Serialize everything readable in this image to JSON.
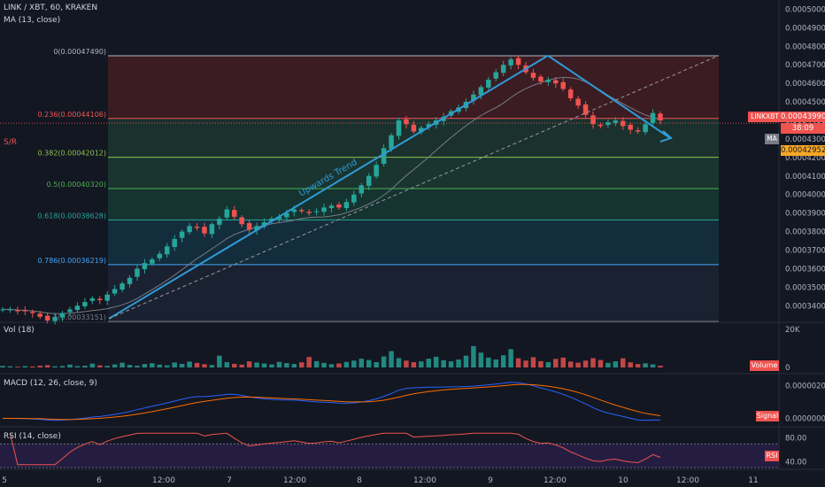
{
  "header": {
    "symbol_line": "LINK / XBT, 60, KRAKEN",
    "ma_line": "MA (13, close)",
    "sr_label": "S/R"
  },
  "panes": {
    "vol": {
      "title": "Vol (18)",
      "tag": "Volume",
      "axis": [
        "20K",
        "0"
      ]
    },
    "macd": {
      "title": "MACD (12, 26, close, 9)",
      "tag": "Signal",
      "axis": [
        "0.00000200",
        "0.00000000"
      ]
    },
    "rsi": {
      "title": "RSI (14, close)",
      "tag": "RSI",
      "axis": [
        "80.00",
        "40.00"
      ]
    }
  },
  "price_axis": {
    "ticks": [
      "0.00050000",
      "0.00049000",
      "0.00048000",
      "0.00047000",
      "0.00046000",
      "0.00045000",
      "0.00044000",
      "0.00043000",
      "0.00042000",
      "0.00041000",
      "0.00040000",
      "0.00039000",
      "0.00038000",
      "0.00037000",
      "0.00036000",
      "0.00035000",
      "0.00034000"
    ],
    "tag_symbol": "LINKXBT",
    "tag_price": "0.00043990",
    "tag_countdown": "38:09",
    "tag_ma": "MA",
    "tag_sr": "0.00042952"
  },
  "time_axis": [
    "5",
    "6",
    "12:00",
    "7",
    "12:00",
    "8",
    "12:00",
    "9",
    "12:00",
    "10",
    "12:00",
    "11"
  ],
  "fib_levels": [
    {
      "label": "0(0.00047490)",
      "value": 0.0004749,
      "color": "#b2b5be"
    },
    {
      "label": "0.236(0.00044106)",
      "value": 0.00044106,
      "color": "#ef5350"
    },
    {
      "label": "0.382(0.00042012)",
      "value": 0.00042012,
      "color": "#8bc34a"
    },
    {
      "label": "0.5(0.00040320)",
      "value": 0.0004032,
      "color": "#4caf50"
    },
    {
      "label": "0.618(0.00038628)",
      "value": 0.00038628,
      "color": "#26a69a"
    },
    {
      "label": "0.786(0.00036219)",
      "value": 0.00036219,
      "color": "#42a5f5"
    },
    {
      "label": "1(0.00033151)",
      "value": 0.00033151,
      "color": "#787b86"
    }
  ],
  "annotations": {
    "trend_text": "Upwards Trend"
  },
  "colors": {
    "bull": "#26a69a",
    "bear": "#ef5350",
    "ma": "#787b86",
    "trendline": "#2f9bd6",
    "macd": "#2962ff",
    "signal": "#ff6d00",
    "rsi": "#ef5350"
  },
  "chart_data": {
    "type": "candlestick",
    "symbol": "LINK / XBT",
    "interval": "60",
    "exchange": "KRAKEN",
    "y_range": [
      0.000332,
      0.000505
    ],
    "time_range": [
      "Jan 5",
      "Jan 11"
    ],
    "close_series": [
      0.000338,
      0.000338,
      0.000337,
      0.000337,
      0.000336,
      0.000334,
      0.000332,
      0.000334,
      0.000336,
      0.000338,
      0.00034,
      0.000342,
      0.000344,
      0.000343,
      0.000346,
      0.000349,
      0.000352,
      0.000355,
      0.00036,
      0.000363,
      0.000365,
      0.000368,
      0.000372,
      0.000376,
      0.00038,
      0.000383,
      0.000382,
      0.000379,
      0.000384,
      0.000387,
      0.000392,
      0.000388,
      0.000384,
      0.000381,
      0.000383,
      0.000385,
      0.000387,
      0.000388,
      0.00039,
      0.000392,
      0.000391,
      0.00039,
      0.000391,
      0.000393,
      0.000394,
      0.000393,
      0.000396,
      0.0004,
      0.000405,
      0.00041,
      0.000416,
      0.000425,
      0.000432,
      0.00044,
      0.000438,
      0.000434,
      0.000436,
      0.000438,
      0.00044,
      0.000442,
      0.000445,
      0.000447,
      0.00045,
      0.000454,
      0.000458,
      0.000462,
      0.000466,
      0.00047,
      0.000473,
      0.00047,
      0.000466,
      0.000463,
      0.000461,
      0.000462,
      0.00046,
      0.000457,
      0.000452,
      0.000448,
      0.000443,
      0.000438,
      0.000437,
      0.000439,
      0.00044,
      0.000437,
      0.000435,
      0.000434,
      0.000438,
      0.000444,
      0.00044
    ],
    "last_price": 0.0004399,
    "ma_period": 13,
    "volume": [
      800,
      600,
      400,
      700,
      500,
      900,
      1200,
      600,
      800,
      1500,
      700,
      900,
      2000,
      1100,
      800,
      1600,
      2500,
      1300,
      900,
      1800,
      2200,
      1500,
      1100,
      2600,
      1900,
      3100,
      2400,
      1700,
      1300,
      6200,
      2800,
      1900,
      1500,
      3200,
      2600,
      2100,
      1600,
      2900,
      2300,
      1800,
      2700,
      5500,
      3300,
      2400,
      1700,
      2100,
      2900,
      3600,
      4600,
      3900,
      2800,
      5800,
      8600,
      4900,
      3600,
      2800,
      3200,
      4600,
      5600,
      3800,
      3200,
      4200,
      6200,
      11200,
      7800,
      5200,
      4200,
      6400,
      9600,
      4800,
      3600,
      5400,
      3300,
      2800,
      4500,
      5200,
      3100,
      2500,
      3600,
      4900,
      3900,
      2400,
      3200,
      4800,
      2700,
      1800,
      2200,
      1600,
      900
    ],
    "volume_axis_max": 20000,
    "macd_range": [
      -3e-07,
      2.3e-06
    ],
    "rsi_axis": [
      40,
      80
    ]
  }
}
